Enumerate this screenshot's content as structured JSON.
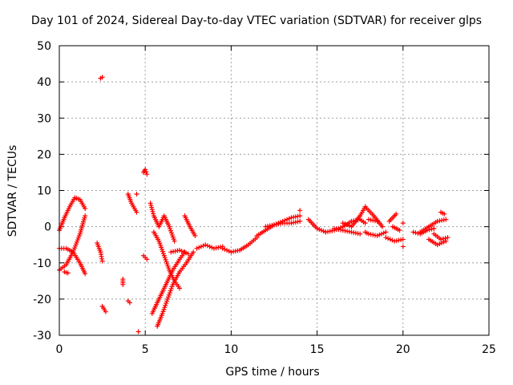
{
  "chart_data": {
    "type": "scatter",
    "title": "Day 101 of 2024, Sidereal Day-to-day VTEC variation (SDTVAR) for receiver glps",
    "xlabel": "GPS time / hours",
    "ylabel": "SDTVAR / TECUs",
    "xlim": [
      0,
      25
    ],
    "ylim": [
      -30,
      50
    ],
    "xticks": [
      "0",
      "5",
      "10",
      "15",
      "20",
      "25"
    ],
    "yticks": [
      "-30",
      "-20",
      "-10",
      "0",
      "10",
      "20",
      "30",
      "40",
      "50"
    ],
    "grid": true,
    "marker": "+",
    "marker_color": "#ff0000",
    "segments": [
      {
        "x": [
          0.0,
          0.3,
          0.6,
          0.9,
          1.2,
          1.5
        ],
        "y": [
          -1.0,
          2.5,
          5.5,
          8.0,
          7.5,
          5.0
        ]
      },
      {
        "x": [
          0.0,
          0.4,
          0.8,
          1.2,
          1.5
        ],
        "y": [
          -12.0,
          -10.5,
          -7.0,
          -2.0,
          3.0
        ]
      },
      {
        "x": [
          0.0,
          0.4,
          0.8,
          1.2,
          1.5
        ],
        "y": [
          -6.0,
          -6.0,
          -7.0,
          -10.0,
          -13.0
        ]
      },
      {
        "x": [
          0.3,
          0.5
        ],
        "y": [
          -12.5,
          -12.8
        ]
      },
      {
        "x": [
          2.4,
          2.5
        ],
        "y": [
          41.0,
          41.3
        ]
      },
      {
        "x": [
          2.2,
          2.4,
          2.5
        ],
        "y": [
          -4.5,
          -7.0,
          -9.5
        ]
      },
      {
        "x": [
          2.5,
          2.7
        ],
        "y": [
          -22.0,
          -23.5
        ]
      },
      {
        "x": [
          3.7,
          3.7
        ],
        "y": [
          -14.5,
          -16.0
        ]
      },
      {
        "x": [
          4.0,
          4.1
        ],
        "y": [
          -20.5,
          -21.0
        ]
      },
      {
        "x": [
          4.0,
          4.2,
          4.5
        ],
        "y": [
          9.0,
          6.5,
          4.0
        ]
      },
      {
        "x": [
          4.5
        ],
        "y": [
          9.0
        ]
      },
      {
        "x": [
          4.6
        ],
        "y": [
          -29.0
        ]
      },
      {
        "x": [
          4.9,
          5.0,
          5.1
        ],
        "y": [
          15.0,
          15.8,
          14.5
        ]
      },
      {
        "x": [
          4.9,
          5.1
        ],
        "y": [
          -8.0,
          -9.0
        ]
      },
      {
        "x": [
          5.3,
          5.5,
          5.8,
          6.1,
          6.4,
          6.7
        ],
        "y": [
          6.5,
          3.0,
          0.0,
          3.0,
          0.0,
          -4.0
        ]
      },
      {
        "x": [
          5.5,
          5.8,
          6.1,
          6.4,
          6.7,
          7.0
        ],
        "y": [
          -1.5,
          -4.0,
          -8.0,
          -12.0,
          -15.0,
          -17.0
        ]
      },
      {
        "x": [
          5.4,
          5.7,
          6.0,
          6.3,
          6.6,
          7.0,
          7.3
        ],
        "y": [
          -24.0,
          -21.0,
          -18.0,
          -15.0,
          -12.0,
          -9.0,
          -7.0
        ]
      },
      {
        "x": [
          5.7,
          6.0,
          6.3,
          6.6,
          7.0,
          7.4,
          7.8
        ],
        "y": [
          -27.5,
          -24.0,
          -20.0,
          -16.0,
          -12.5,
          -10.0,
          -7.0
        ]
      },
      {
        "x": [
          6.5,
          7.0,
          7.5
        ],
        "y": [
          -7.0,
          -6.5,
          -7.5
        ]
      },
      {
        "x": [
          7.3,
          7.6,
          7.9
        ],
        "y": [
          3.0,
          0.0,
          -2.5
        ]
      },
      {
        "x": [
          8.0,
          8.5,
          9.0,
          9.5
        ],
        "y": [
          -6.0,
          -5.0,
          -6.0,
          -5.5
        ]
      },
      {
        "x": [
          9.5,
          10.0,
          10.5,
          11.0,
          11.5
        ],
        "y": [
          -6.0,
          -7.0,
          -6.5,
          -5.0,
          -3.0
        ]
      },
      {
        "x": [
          11.5,
          12.0,
          12.5,
          13.0,
          13.5,
          14.0
        ],
        "y": [
          -2.5,
          -1.0,
          0.5,
          1.5,
          2.5,
          3.0
        ]
      },
      {
        "x": [
          12.0,
          12.5,
          13.0,
          13.5,
          14.0
        ],
        "y": [
          0.0,
          0.5,
          1.0,
          1.0,
          1.5
        ]
      },
      {
        "x": [
          14.0
        ],
        "y": [
          4.5
        ]
      },
      {
        "x": [
          14.5,
          15.0,
          15.5
        ],
        "y": [
          2.0,
          -0.5,
          -1.5
        ]
      },
      {
        "x": [
          15.5,
          16.0,
          16.5,
          17.0,
          17.5,
          17.8
        ],
        "y": [
          -1.5,
          -1.0,
          0.0,
          1.5,
          2.0,
          1.0
        ]
      },
      {
        "x": [
          16.0,
          16.5,
          17.0,
          17.5
        ],
        "y": [
          -0.5,
          -1.0,
          -1.5,
          -2.0
        ]
      },
      {
        "x": [
          16.5,
          17.0,
          17.5,
          17.8
        ],
        "y": [
          1.0,
          0.0,
          3.0,
          5.5
        ]
      },
      {
        "x": [
          17.8,
          18.3,
          18.8
        ],
        "y": [
          5.5,
          3.0,
          0.0
        ]
      },
      {
        "x": [
          17.8,
          18.0,
          18.5,
          19.0
        ],
        "y": [
          -1.5,
          -2.0,
          -2.5,
          -1.5
        ]
      },
      {
        "x": [
          18.0,
          18.5
        ],
        "y": [
          2.0,
          1.5
        ]
      },
      {
        "x": [
          19.0,
          19.5,
          20.0
        ],
        "y": [
          -3.0,
          -4.0,
          -3.5
        ]
      },
      {
        "x": [
          19.2,
          19.6
        ],
        "y": [
          1.5,
          3.5
        ]
      },
      {
        "x": [
          19.4,
          19.8
        ],
        "y": [
          0.0,
          -1.0
        ]
      },
      {
        "x": [
          20.0
        ],
        "y": [
          -5.5
        ]
      },
      {
        "x": [
          20.0
        ],
        "y": [
          1.0
        ]
      },
      {
        "x": [
          20.6,
          21.0,
          21.4,
          21.8
        ],
        "y": [
          -1.5,
          -2.0,
          -1.0,
          -0.5
        ]
      },
      {
        "x": [
          21.0,
          21.5,
          22.0,
          22.5
        ],
        "y": [
          -1.5,
          0.0,
          1.5,
          2.0
        ]
      },
      {
        "x": [
          21.5,
          22.0,
          22.5
        ],
        "y": [
          -3.5,
          -5.0,
          -4.0
        ]
      },
      {
        "x": [
          21.8,
          22.2,
          22.6
        ],
        "y": [
          -2.0,
          -3.5,
          -3.0
        ]
      },
      {
        "x": [
          22.2,
          22.4
        ],
        "y": [
          4.0,
          3.5
        ]
      }
    ]
  }
}
